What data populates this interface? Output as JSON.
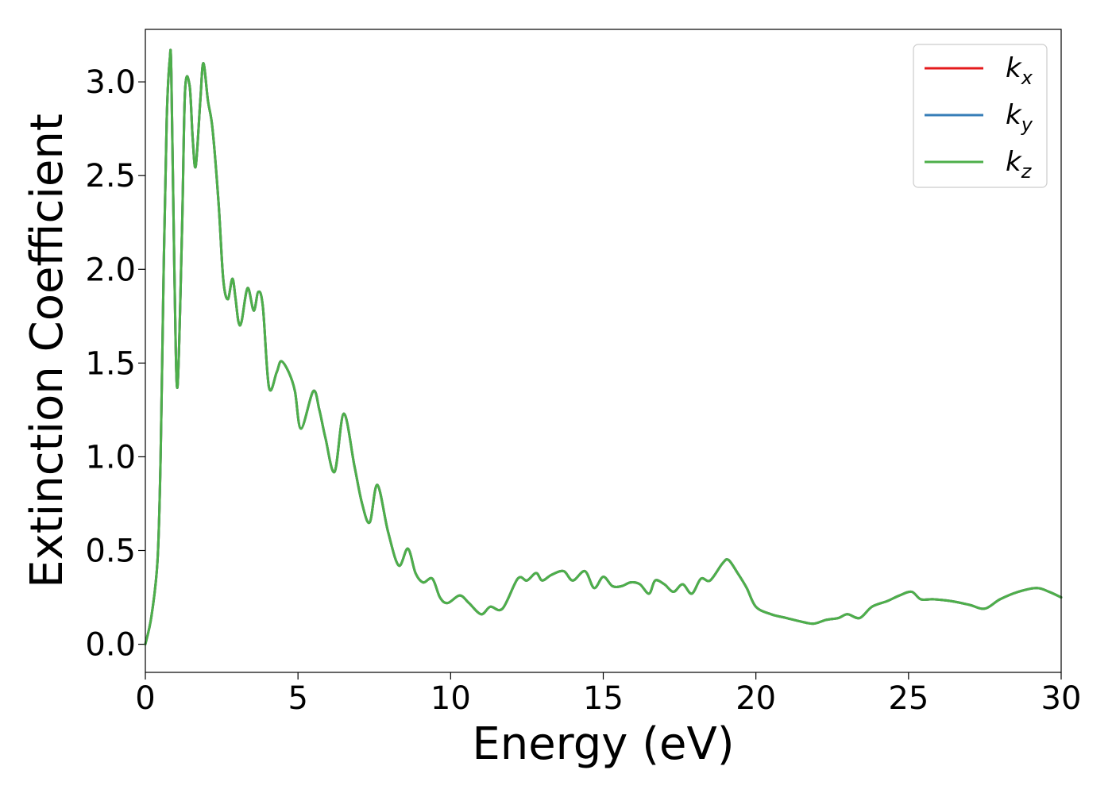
{
  "chart_data": {
    "type": "line",
    "title": "",
    "xlabel": "Energy (eV)",
    "ylabel": "Extinction Coefficient",
    "xlim": [
      0,
      30
    ],
    "ylim": [
      -0.15,
      3.28
    ],
    "xticks": [
      0,
      5,
      10,
      15,
      20,
      25,
      30
    ],
    "xtick_labels": [
      "0",
      "5",
      "10",
      "15",
      "20",
      "25",
      "30"
    ],
    "yticks": [
      0.0,
      0.5,
      1.0,
      1.5,
      2.0,
      2.5,
      3.0
    ],
    "ytick_labels": [
      "0.0",
      "0.5",
      "1.0",
      "1.5",
      "2.0",
      "2.5",
      "3.0"
    ],
    "grid": false,
    "legend_position": "top-right",
    "colors": {
      "kx": "#e41a1c",
      "ky": "#377eb8",
      "kz": "#4daf4a"
    },
    "x": [
      0,
      0.2,
      0.4,
      0.5,
      0.6,
      0.7,
      0.8,
      0.85,
      0.95,
      1.05,
      1.2,
      1.3,
      1.45,
      1.55,
      1.65,
      1.8,
      1.9,
      2.05,
      2.2,
      2.4,
      2.55,
      2.7,
      2.85,
      2.95,
      3.05,
      3.15,
      3.35,
      3.55,
      3.7,
      3.85,
      4.05,
      4.3,
      4.45,
      4.7,
      4.9,
      5.1,
      5.5,
      5.7,
      5.9,
      6.2,
      6.5,
      6.85,
      7.1,
      7.35,
      7.6,
      7.95,
      8.3,
      8.6,
      8.85,
      9.1,
      9.4,
      9.65,
      9.9,
      10.3,
      10.6,
      11.0,
      11.3,
      11.7,
      12.2,
      12.5,
      12.8,
      13.0,
      13.3,
      13.7,
      14.0,
      14.4,
      14.7,
      15.0,
      15.3,
      15.6,
      15.9,
      16.2,
      16.5,
      16.7,
      17.0,
      17.3,
      17.6,
      17.9,
      18.2,
      18.5,
      18.9,
      19.1,
      19.4,
      19.7,
      20.0,
      20.5,
      21.0,
      21.5,
      21.9,
      22.3,
      22.7,
      23.0,
      23.4,
      23.8,
      24.3,
      24.7,
      25.1,
      25.4,
      25.8,
      26.4,
      27.0,
      27.5,
      28.0,
      28.6,
      29.2,
      29.6,
      30.0
    ],
    "series": [
      {
        "name": "k_x",
        "values": [
          0.0,
          0.15,
          0.45,
          1.0,
          2.0,
          2.8,
          3.12,
          3.05,
          2.0,
          1.37,
          2.2,
          2.95,
          2.98,
          2.7,
          2.55,
          2.9,
          3.1,
          2.9,
          2.75,
          2.35,
          1.95,
          1.84,
          1.95,
          1.85,
          1.72,
          1.72,
          1.9,
          1.78,
          1.88,
          1.8,
          1.37,
          1.45,
          1.51,
          1.45,
          1.35,
          1.15,
          1.35,
          1.25,
          1.1,
          0.92,
          1.23,
          0.95,
          0.75,
          0.65,
          0.85,
          0.6,
          0.42,
          0.51,
          0.38,
          0.33,
          0.35,
          0.25,
          0.22,
          0.26,
          0.22,
          0.16,
          0.2,
          0.19,
          0.35,
          0.34,
          0.38,
          0.34,
          0.37,
          0.39,
          0.34,
          0.39,
          0.3,
          0.36,
          0.31,
          0.31,
          0.33,
          0.32,
          0.27,
          0.34,
          0.32,
          0.28,
          0.32,
          0.27,
          0.35,
          0.34,
          0.43,
          0.45,
          0.38,
          0.3,
          0.2,
          0.16,
          0.14,
          0.12,
          0.11,
          0.13,
          0.14,
          0.16,
          0.14,
          0.2,
          0.23,
          0.26,
          0.28,
          0.24,
          0.24,
          0.23,
          0.21,
          0.19,
          0.24,
          0.28,
          0.3,
          0.28,
          0.25
        ]
      },
      {
        "name": "k_y",
        "values": [
          0.0,
          0.15,
          0.45,
          1.0,
          2.0,
          2.8,
          3.12,
          3.05,
          2.0,
          1.37,
          2.2,
          2.95,
          2.98,
          2.7,
          2.55,
          2.9,
          3.1,
          2.9,
          2.75,
          2.35,
          1.95,
          1.84,
          1.95,
          1.85,
          1.72,
          1.72,
          1.9,
          1.78,
          1.88,
          1.8,
          1.37,
          1.45,
          1.51,
          1.45,
          1.35,
          1.15,
          1.35,
          1.25,
          1.1,
          0.92,
          1.23,
          0.95,
          0.75,
          0.65,
          0.85,
          0.6,
          0.42,
          0.51,
          0.38,
          0.33,
          0.35,
          0.25,
          0.22,
          0.26,
          0.22,
          0.16,
          0.2,
          0.19,
          0.35,
          0.34,
          0.38,
          0.34,
          0.37,
          0.39,
          0.34,
          0.39,
          0.3,
          0.36,
          0.31,
          0.31,
          0.33,
          0.32,
          0.27,
          0.34,
          0.32,
          0.28,
          0.32,
          0.27,
          0.35,
          0.34,
          0.43,
          0.45,
          0.38,
          0.3,
          0.2,
          0.16,
          0.14,
          0.12,
          0.11,
          0.13,
          0.14,
          0.16,
          0.14,
          0.2,
          0.23,
          0.26,
          0.28,
          0.24,
          0.24,
          0.23,
          0.21,
          0.19,
          0.24,
          0.28,
          0.3,
          0.28,
          0.25
        ]
      },
      {
        "name": "k_z",
        "values": [
          0.0,
          0.15,
          0.45,
          1.0,
          2.0,
          2.8,
          3.12,
          3.05,
          2.0,
          1.37,
          2.2,
          2.95,
          2.98,
          2.7,
          2.55,
          2.9,
          3.1,
          2.9,
          2.75,
          2.35,
          1.95,
          1.84,
          1.95,
          1.85,
          1.72,
          1.72,
          1.9,
          1.78,
          1.88,
          1.8,
          1.37,
          1.45,
          1.51,
          1.45,
          1.35,
          1.15,
          1.35,
          1.25,
          1.1,
          0.92,
          1.23,
          0.95,
          0.75,
          0.65,
          0.85,
          0.6,
          0.42,
          0.51,
          0.38,
          0.33,
          0.35,
          0.25,
          0.22,
          0.26,
          0.22,
          0.16,
          0.2,
          0.19,
          0.35,
          0.34,
          0.38,
          0.34,
          0.37,
          0.39,
          0.34,
          0.39,
          0.3,
          0.36,
          0.31,
          0.31,
          0.33,
          0.32,
          0.27,
          0.34,
          0.32,
          0.28,
          0.32,
          0.27,
          0.35,
          0.34,
          0.43,
          0.45,
          0.38,
          0.3,
          0.2,
          0.16,
          0.14,
          0.12,
          0.11,
          0.13,
          0.14,
          0.16,
          0.14,
          0.2,
          0.23,
          0.26,
          0.28,
          0.24,
          0.24,
          0.23,
          0.21,
          0.19,
          0.24,
          0.28,
          0.3,
          0.28,
          0.25
        ]
      }
    ],
    "legend": [
      {
        "base": "k",
        "sub": "x",
        "color_key": "kx"
      },
      {
        "base": "k",
        "sub": "y",
        "color_key": "ky"
      },
      {
        "base": "k",
        "sub": "z",
        "color_key": "kz"
      }
    ]
  }
}
